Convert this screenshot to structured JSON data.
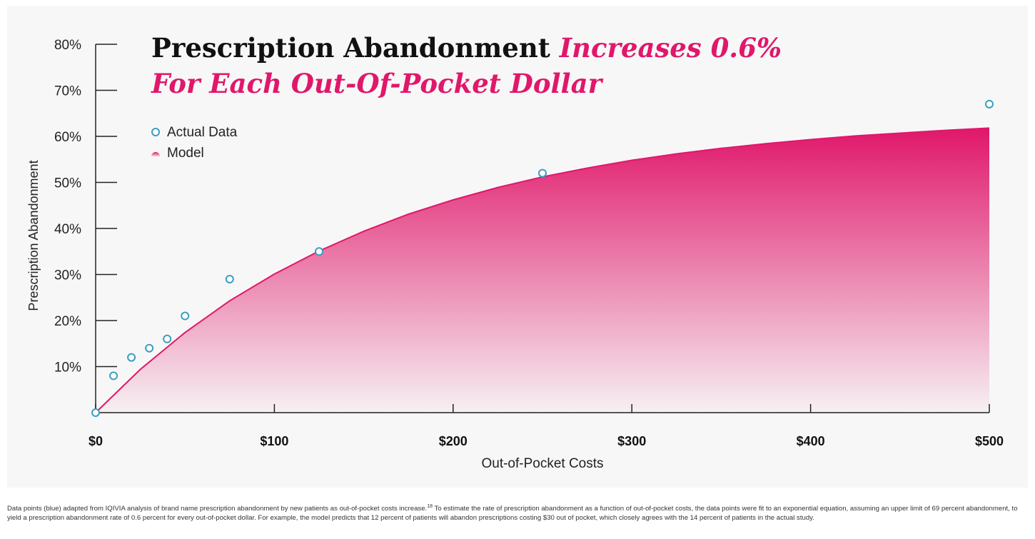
{
  "title": {
    "main": "Prescription Abandonment",
    "accent": "Increases 0.6% For Each Out-Of-Pocket Dollar"
  },
  "legend": {
    "actual": "Actual Data",
    "model": "Model",
    "position": "top-left"
  },
  "footnote": {
    "before_ref": "Data points (blue) adapted from IQIVIA analysis of brand name prescription abandonment by new patients as out-of-pocket costs increase.",
    "ref": "18",
    "after_ref": " To estimate the rate of prescription abandonment as a function of out-of-pocket costs, the data points were fit to an exponential equation, assuming an upper limit of 69 percent abandonment, to yield a prescription abandonment rate of 0.6 percent for every out-of-pocket dollar. For example, the model predicts that 12 percent of patients will abandon prescriptions costing $30 out of pocket, which closely agrees with the 14 percent of patients in the actual study."
  },
  "colors": {
    "model": "#e0176a",
    "points": "#3a9ec2",
    "axis": "#222222"
  },
  "chart_data": {
    "type": "area",
    "xlabel": "Out-of-Pocket Costs",
    "ylabel": "Prescription Abandonment",
    "xlim": [
      0,
      500
    ],
    "ylim": [
      0,
      80
    ],
    "x_ticks": [
      0,
      100,
      200,
      300,
      400,
      500
    ],
    "x_tick_labels": [
      "$0",
      "$100",
      "$200",
      "$300",
      "$400",
      "$500"
    ],
    "y_ticks": [
      10,
      20,
      30,
      40,
      50,
      60,
      70,
      80
    ],
    "y_tick_labels": [
      "10%",
      "20%",
      "30%",
      "40%",
      "50%",
      "60%",
      "70%",
      "80%"
    ],
    "grid": false,
    "series": [
      {
        "name": "Actual Data",
        "kind": "scatter",
        "x": [
          0,
          10,
          20,
          30,
          40,
          50,
          75,
          125,
          250,
          500
        ],
        "y": [
          0,
          8,
          12,
          14,
          16,
          21,
          29,
          35,
          52,
          67
        ]
      },
      {
        "name": "Model",
        "kind": "area",
        "x": [
          0,
          25,
          50,
          75,
          100,
          125,
          150,
          175,
          200,
          225,
          250,
          275,
          300,
          325,
          350,
          375,
          400,
          425,
          450,
          475,
          500
        ],
        "y": [
          0,
          9.4,
          17.4,
          24.3,
          30.1,
          35.1,
          39.4,
          43.1,
          46.2,
          48.9,
          51.2,
          53.1,
          54.8,
          56.2,
          57.4,
          58.4,
          59.3,
          60.1,
          60.7,
          61.3,
          61.8
        ]
      }
    ]
  }
}
